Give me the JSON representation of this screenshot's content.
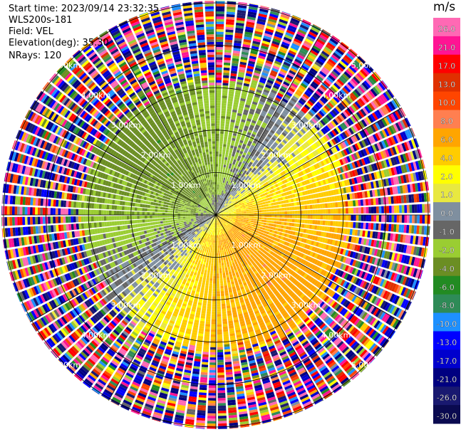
{
  "header": {
    "start_time": "Start time: 2023/09/14 23:32:35",
    "instrument": "WLS200s-181",
    "field": "Field: VEL",
    "elevation": "Elevation(deg): 35.30",
    "nrays": "NRays: 120"
  },
  "colorbar": {
    "unit": "m/s",
    "ticks": [
      "26.0",
      "21.0",
      "17.0",
      "13.0",
      "10.0",
      "8.0",
      "6.0",
      "4.0",
      "2.0",
      "1.0",
      "0.0",
      "-1.0",
      "-2.0",
      "-4.0",
      "-6.0",
      "-8.0",
      "-10.0",
      "-13.0",
      "-17.0",
      "-21.0",
      "-26.0",
      "-30.0"
    ],
    "colors": [
      "#ff69b4",
      "#ff1493",
      "#ff0000",
      "#e03000",
      "#ff4500",
      "#ff7f50",
      "#ffa500",
      "#ffcc00",
      "#ffff00",
      "#e8e840",
      "#7f8f9f",
      "#666666",
      "#9acd32",
      "#6b8e23",
      "#228b22",
      "#2e8b57",
      "#1e90ff",
      "#0000ff",
      "#0000cd",
      "#000080",
      "#191970",
      "#0a0a50"
    ]
  },
  "chart_data": {
    "type": "heatmap",
    "projection": "polar PPI",
    "field": "VEL",
    "unit": "m/s",
    "nrays": 120,
    "elevation_deg": 35.3,
    "range_rings_km": [
      1.0,
      2.0,
      3.0,
      4.0,
      5.0
    ],
    "ring_labels": [
      "1.00km",
      "2.00km",
      "3.00km",
      "4.00km",
      "5.00km"
    ],
    "max_range_km": 5.05,
    "vmin": -30.0,
    "vmax": 26.0,
    "gate_km": 0.06,
    "pattern_notes": "Near-range (<~3.2 km): negative velocities (-2 to -6 m/s, green) toward N/NW/W, positive (2 to 8 m/s, yellow/orange) toward E/SE/S, near-zero grey along NE-SW line; far-range (>~3.2 km): noise with random colors."
  }
}
